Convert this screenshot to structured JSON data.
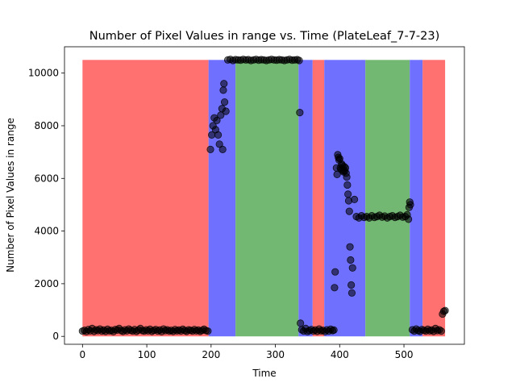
{
  "chart_data": {
    "type": "scatter",
    "title": "Number of Pixel Values in range vs. Time (PlateLeaf_7-7-23)",
    "xlabel": "Time",
    "ylabel": "Number of Pixel Values in range",
    "xlim": [
      -28,
      594
    ],
    "ylim": [
      -300,
      11000
    ],
    "xticks": [
      0,
      100,
      200,
      300,
      400,
      500
    ],
    "yticks": [
      0,
      2000,
      4000,
      6000,
      8000,
      10000
    ],
    "grid": false,
    "legend": "none",
    "background_bands": {
      "top": 10500,
      "bottom": 0,
      "spans": [
        {
          "start": 0,
          "end": 196,
          "color": "#ff7070"
        },
        {
          "start": 196,
          "end": 238,
          "color": "#7070ff"
        },
        {
          "start": 238,
          "end": 336,
          "color": "#72b872"
        },
        {
          "start": 336,
          "end": 358,
          "color": "#7070ff"
        },
        {
          "start": 358,
          "end": 376,
          "color": "#ff7070"
        },
        {
          "start": 376,
          "end": 440,
          "color": "#7070ff"
        },
        {
          "start": 440,
          "end": 509,
          "color": "#72b872"
        },
        {
          "start": 509,
          "end": 529,
          "color": "#7070ff"
        },
        {
          "start": 529,
          "end": 564,
          "color": "#ff7070"
        }
      ]
    },
    "marker_color": "#000000",
    "points": [
      [
        0,
        200
      ],
      [
        3,
        230
      ],
      [
        6,
        180
      ],
      [
        9,
        260
      ],
      [
        12,
        210
      ],
      [
        15,
        300
      ],
      [
        18,
        190
      ],
      [
        21,
        250
      ],
      [
        24,
        220
      ],
      [
        27,
        280
      ],
      [
        30,
        200
      ],
      [
        33,
        240
      ],
      [
        36,
        190
      ],
      [
        39,
        270
      ],
      [
        42,
        210
      ],
      [
        45,
        230
      ],
      [
        48,
        180
      ],
      [
        51,
        260
      ],
      [
        54,
        240
      ],
      [
        57,
        300
      ],
      [
        60,
        220
      ],
      [
        63,
        190
      ],
      [
        66,
        250
      ],
      [
        69,
        210
      ],
      [
        72,
        280
      ],
      [
        75,
        230
      ],
      [
        78,
        200
      ],
      [
        81,
        260
      ],
      [
        84,
        190
      ],
      [
        87,
        240
      ],
      [
        90,
        300
      ],
      [
        93,
        220
      ],
      [
        96,
        200
      ],
      [
        99,
        250
      ],
      [
        102,
        210
      ],
      [
        105,
        270
      ],
      [
        108,
        190
      ],
      [
        111,
        230
      ],
      [
        114,
        260
      ],
      [
        117,
        200
      ],
      [
        120,
        240
      ],
      [
        123,
        180
      ],
      [
        126,
        280
      ],
      [
        129,
        220
      ],
      [
        132,
        250
      ],
      [
        135,
        200
      ],
      [
        138,
        230
      ],
      [
        141,
        190
      ],
      [
        144,
        260
      ],
      [
        147,
        210
      ],
      [
        150,
        240
      ],
      [
        153,
        200
      ],
      [
        156,
        270
      ],
      [
        159,
        220
      ],
      [
        162,
        190
      ],
      [
        165,
        250
      ],
      [
        168,
        230
      ],
      [
        171,
        200
      ],
      [
        174,
        260
      ],
      [
        177,
        210
      ],
      [
        180,
        240
      ],
      [
        183,
        190
      ],
      [
        186,
        230
      ],
      [
        189,
        270
      ],
      [
        192,
        220
      ],
      [
        195,
        200
      ],
      [
        199,
        7100
      ],
      [
        201,
        7650
      ],
      [
        203,
        8000
      ],
      [
        205,
        8300
      ],
      [
        207,
        7850
      ],
      [
        209,
        8200
      ],
      [
        211,
        7650
      ],
      [
        213,
        7300
      ],
      [
        215,
        8400
      ],
      [
        217,
        8650
      ],
      [
        218,
        7100
      ],
      [
        219,
        9350
      ],
      [
        220,
        9600
      ],
      [
        221,
        8900
      ],
      [
        223,
        8550
      ],
      [
        226,
        10500
      ],
      [
        230,
        10520
      ],
      [
        234,
        10480
      ],
      [
        238,
        10510
      ],
      [
        242,
        10500
      ],
      [
        246,
        10490
      ],
      [
        250,
        10520
      ],
      [
        254,
        10500
      ],
      [
        258,
        10510
      ],
      [
        262,
        10480
      ],
      [
        266,
        10500
      ],
      [
        270,
        10520
      ],
      [
        274,
        10490
      ],
      [
        278,
        10510
      ],
      [
        282,
        10500
      ],
      [
        286,
        10480
      ],
      [
        290,
        10500
      ],
      [
        294,
        10520
      ],
      [
        298,
        10500
      ],
      [
        302,
        10490
      ],
      [
        306,
        10510
      ],
      [
        310,
        10500
      ],
      [
        314,
        10480
      ],
      [
        318,
        10500
      ],
      [
        322,
        10520
      ],
      [
        326,
        10490
      ],
      [
        330,
        10500
      ],
      [
        334,
        10510
      ],
      [
        337,
        10480
      ],
      [
        338,
        8500
      ],
      [
        339,
        500
      ],
      [
        341,
        250
      ],
      [
        344,
        200
      ],
      [
        347,
        300
      ],
      [
        350,
        180
      ],
      [
        353,
        220
      ],
      [
        356,
        260
      ],
      [
        359,
        200
      ],
      [
        362,
        240
      ],
      [
        365,
        190
      ],
      [
        368,
        280
      ],
      [
        371,
        210
      ],
      [
        374,
        230
      ],
      [
        377,
        180
      ],
      [
        380,
        250
      ],
      [
        383,
        200
      ],
      [
        386,
        270
      ],
      [
        389,
        220
      ],
      [
        391,
        240
      ],
      [
        392,
        1850
      ],
      [
        393,
        2450
      ],
      [
        395,
        6400
      ],
      [
        396,
        6150
      ],
      [
        397,
        6900
      ],
      [
        398,
        6800
      ],
      [
        399,
        6700
      ],
      [
        400,
        6750
      ],
      [
        401,
        6400
      ],
      [
        402,
        6350
      ],
      [
        403,
        6550
      ],
      [
        404,
        6500
      ],
      [
        405,
        6300
      ],
      [
        406,
        6250
      ],
      [
        407,
        6450
      ],
      [
        408,
        6300
      ],
      [
        409,
        6400
      ],
      [
        410,
        6200
      ],
      [
        411,
        6050
      ],
      [
        412,
        5750
      ],
      [
        413,
        5400
      ],
      [
        414,
        5150
      ],
      [
        415,
        4750
      ],
      [
        416,
        3400
      ],
      [
        417,
        2900
      ],
      [
        418,
        1950
      ],
      [
        419,
        1650
      ],
      [
        420,
        2600
      ],
      [
        423,
        5200
      ],
      [
        426,
        4550
      ],
      [
        430,
        4500
      ],
      [
        434,
        4580
      ],
      [
        438,
        4520
      ],
      [
        442,
        4550
      ],
      [
        446,
        4500
      ],
      [
        450,
        4580
      ],
      [
        454,
        4520
      ],
      [
        458,
        4550
      ],
      [
        462,
        4600
      ],
      [
        466,
        4530
      ],
      [
        470,
        4570
      ],
      [
        474,
        4500
      ],
      [
        478,
        4550
      ],
      [
        482,
        4580
      ],
      [
        486,
        4520
      ],
      [
        490,
        4550
      ],
      [
        494,
        4600
      ],
      [
        498,
        4530
      ],
      [
        502,
        4550
      ],
      [
        505,
        4620
      ],
      [
        507,
        4450
      ],
      [
        508,
        4900
      ],
      [
        509,
        5100
      ],
      [
        510,
        5000
      ],
      [
        513,
        250
      ],
      [
        516,
        200
      ],
      [
        519,
        280
      ],
      [
        522,
        220
      ],
      [
        525,
        190
      ],
      [
        528,
        260
      ],
      [
        531,
        230
      ],
      [
        534,
        200
      ],
      [
        537,
        270
      ],
      [
        540,
        210
      ],
      [
        543,
        240
      ],
      [
        546,
        190
      ],
      [
        549,
        300
      ],
      [
        552,
        220
      ],
      [
        555,
        250
      ],
      [
        558,
        200
      ],
      [
        560,
        850
      ],
      [
        562,
        950
      ],
      [
        564,
        980
      ]
    ]
  }
}
